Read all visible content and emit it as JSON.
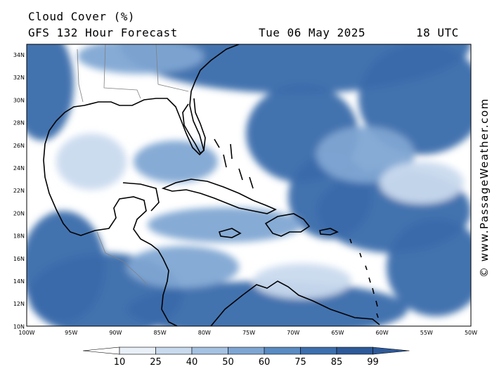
{
  "header": {
    "title": "Cloud Cover (%)",
    "model": "GFS 132 Hour Forecast",
    "date": "Tue 06 May 2025",
    "time": "18 UTC"
  },
  "credit": "© www.PassageWeather.com",
  "axes": {
    "lat_labels": [
      "34N",
      "32N",
      "30N",
      "28N",
      "26N",
      "24N",
      "22N",
      "20N",
      "18N",
      "16N",
      "14N",
      "12N",
      "10N"
    ],
    "lon_labels": [
      "100W",
      "95W",
      "90W",
      "85W",
      "80W",
      "75W",
      "70W",
      "65W",
      "60W",
      "55W",
      "50W"
    ]
  },
  "colorbar": {
    "ticks": [
      "10",
      "25",
      "40",
      "50",
      "60",
      "75",
      "85",
      "99"
    ],
    "colors": [
      "#ffffff",
      "#e9f0f8",
      "#c9daee",
      "#a6c2e2",
      "#7fa6d3",
      "#5a8bc2",
      "#3d6fae",
      "#2e5a99"
    ]
  },
  "palette": {
    "ocean_clear": "#ffffff",
    "cloud_low": "#c9daee",
    "cloud_mid": "#7fa6d3",
    "cloud_high": "#3a6bab",
    "coastline": "#000000",
    "border": "#808080"
  }
}
